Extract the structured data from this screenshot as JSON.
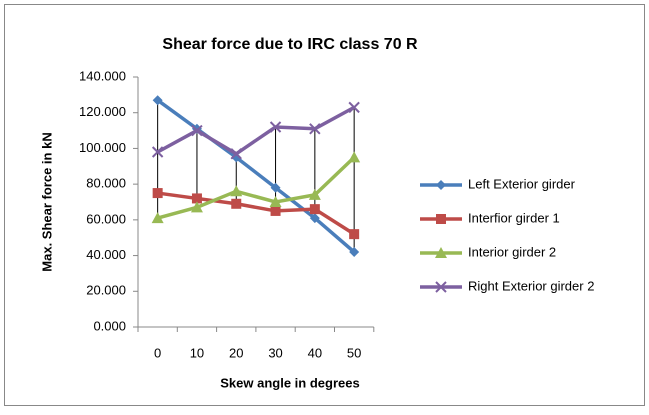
{
  "chart_data": {
    "type": "line",
    "title": "Shear force due to IRC class 70 R",
    "x_label": "Skew angle in degrees",
    "y_label": "Max. Shear force in kN",
    "categories": [
      0,
      10,
      20,
      30,
      40,
      50
    ],
    "ylim": [
      0,
      140
    ],
    "yticks": [
      {
        "value": 0,
        "label": "0.000"
      },
      {
        "value": 20,
        "label": "20.000"
      },
      {
        "value": 40,
        "label": "40.000"
      },
      {
        "value": 60,
        "label": "60.000"
      },
      {
        "value": 80,
        "label": "80.000"
      },
      {
        "value": 100,
        "label": "100.000"
      },
      {
        "value": 120,
        "label": "120.000"
      },
      {
        "value": 140,
        "label": "140.000"
      }
    ],
    "grid": false,
    "legend": "right",
    "high_low_lines": true,
    "series": [
      {
        "name": "Left Exterior girder",
        "color": "#4a7ebb",
        "marker": "diamond",
        "values": [
          127,
          111,
          95,
          78,
          61,
          42
        ]
      },
      {
        "name": "Interfior girder 1",
        "color": "#be4b48",
        "marker": "square",
        "values": [
          75,
          72,
          69,
          65,
          66,
          52
        ]
      },
      {
        "name": "Interior girder 2",
        "color": "#98b954",
        "marker": "triangle",
        "values": [
          61,
          67,
          76,
          70,
          74,
          95
        ]
      },
      {
        "name": "Right Exterior girder 2",
        "color": "#7d60a0",
        "marker": "x",
        "values": [
          98,
          110,
          97,
          112,
          111,
          123
        ]
      }
    ]
  }
}
